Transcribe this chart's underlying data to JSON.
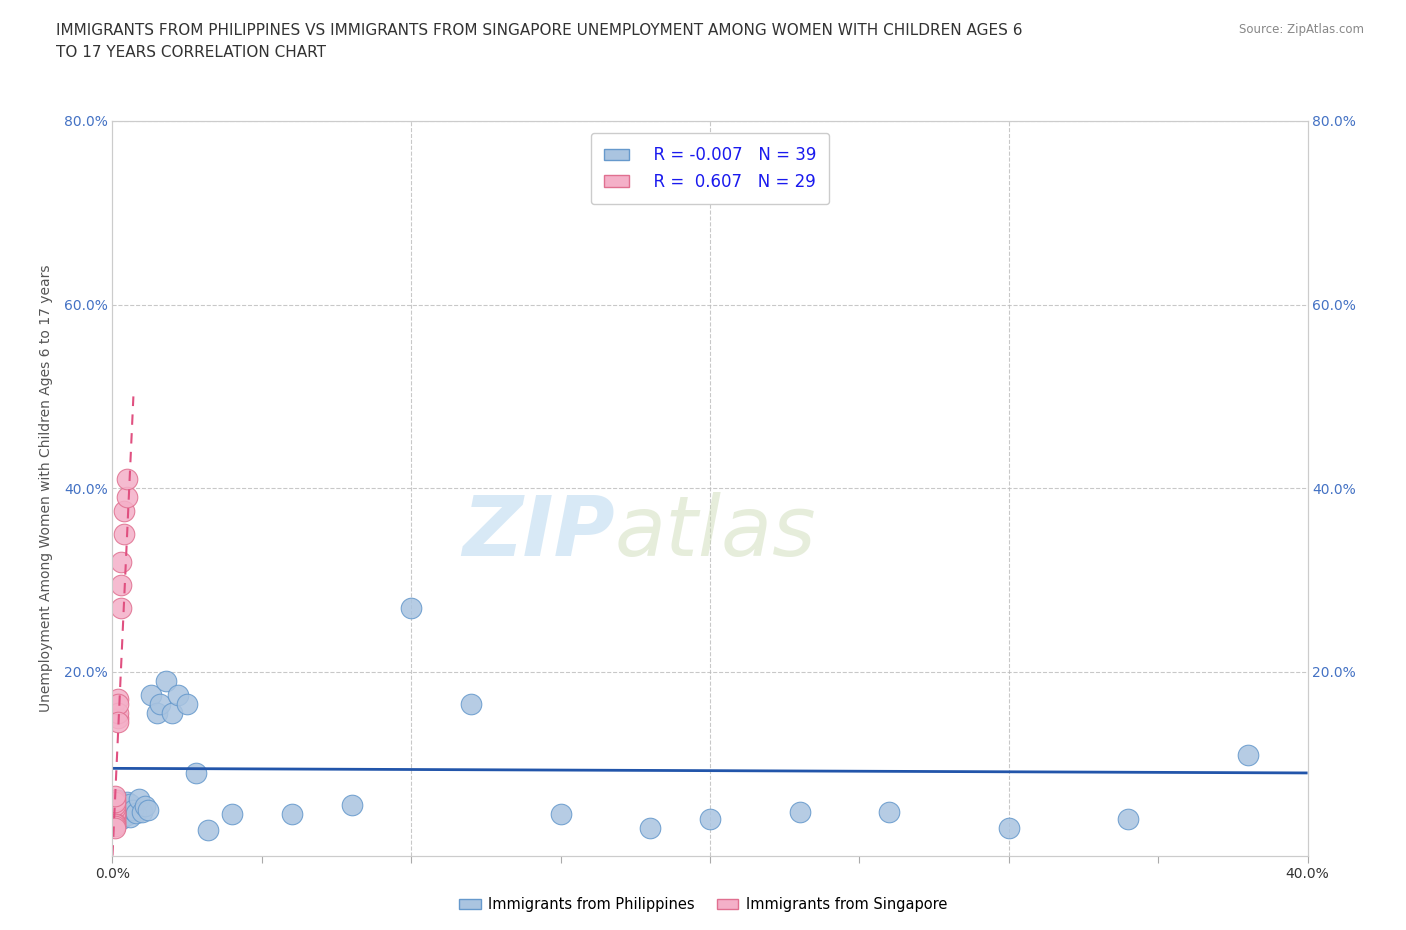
{
  "title": "IMMIGRANTS FROM PHILIPPINES VS IMMIGRANTS FROM SINGAPORE UNEMPLOYMENT AMONG WOMEN WITH CHILDREN AGES 6\nTO 17 YEARS CORRELATION CHART",
  "source_text": "Source: ZipAtlas.com",
  "ylabel": "Unemployment Among Women with Children Ages 6 to 17 years",
  "xlim": [
    0.0,
    0.4
  ],
  "ylim": [
    0.0,
    0.8
  ],
  "background_color": "#ffffff",
  "plot_bg_color": "#ffffff",
  "watermark_zip": "ZIP",
  "watermark_atlas": "atlas",
  "philippines_color": "#aac4e0",
  "philippines_edge_color": "#6699cc",
  "singapore_color": "#f4b0c8",
  "singapore_edge_color": "#e07090",
  "philippines_R": -0.007,
  "philippines_N": 39,
  "singapore_R": 0.607,
  "singapore_N": 29,
  "philippines_line_color": "#2255aa",
  "singapore_line_color": "#e05080",
  "singapore_dash_color": "#e8a0b8",
  "philippines_x": [
    0.001,
    0.002,
    0.002,
    0.003,
    0.003,
    0.004,
    0.004,
    0.005,
    0.005,
    0.006,
    0.006,
    0.007,
    0.008,
    0.009,
    0.01,
    0.011,
    0.012,
    0.013,
    0.015,
    0.016,
    0.018,
    0.02,
    0.022,
    0.025,
    0.028,
    0.032,
    0.04,
    0.06,
    0.08,
    0.1,
    0.12,
    0.15,
    0.18,
    0.2,
    0.23,
    0.26,
    0.3,
    0.34,
    0.38
  ],
  "philippines_y": [
    0.05,
    0.045,
    0.06,
    0.04,
    0.055,
    0.048,
    0.052,
    0.044,
    0.058,
    0.042,
    0.056,
    0.05,
    0.046,
    0.062,
    0.048,
    0.054,
    0.05,
    0.175,
    0.155,
    0.165,
    0.19,
    0.155,
    0.175,
    0.165,
    0.09,
    0.028,
    0.045,
    0.045,
    0.055,
    0.27,
    0.165,
    0.045,
    0.03,
    0.04,
    0.048,
    0.048,
    0.03,
    0.04,
    0.11
  ],
  "singapore_x": [
    0.001,
    0.001,
    0.001,
    0.001,
    0.001,
    0.001,
    0.001,
    0.001,
    0.001,
    0.001,
    0.001,
    0.001,
    0.001,
    0.001,
    0.001,
    0.001,
    0.001,
    0.002,
    0.002,
    0.002,
    0.002,
    0.002,
    0.003,
    0.003,
    0.003,
    0.004,
    0.004,
    0.005,
    0.005
  ],
  "singapore_y": [
    0.045,
    0.048,
    0.05,
    0.042,
    0.038,
    0.044,
    0.04,
    0.046,
    0.052,
    0.036,
    0.055,
    0.034,
    0.06,
    0.032,
    0.058,
    0.03,
    0.065,
    0.15,
    0.17,
    0.155,
    0.165,
    0.145,
    0.295,
    0.27,
    0.32,
    0.35,
    0.375,
    0.39,
    0.41
  ],
  "phil_trend_x": [
    0.0,
    0.4
  ],
  "phil_trend_y": [
    0.095,
    0.09
  ],
  "sing_trend_x": [
    0.0,
    0.007
  ],
  "sing_trend_y": [
    0.0,
    0.5
  ]
}
